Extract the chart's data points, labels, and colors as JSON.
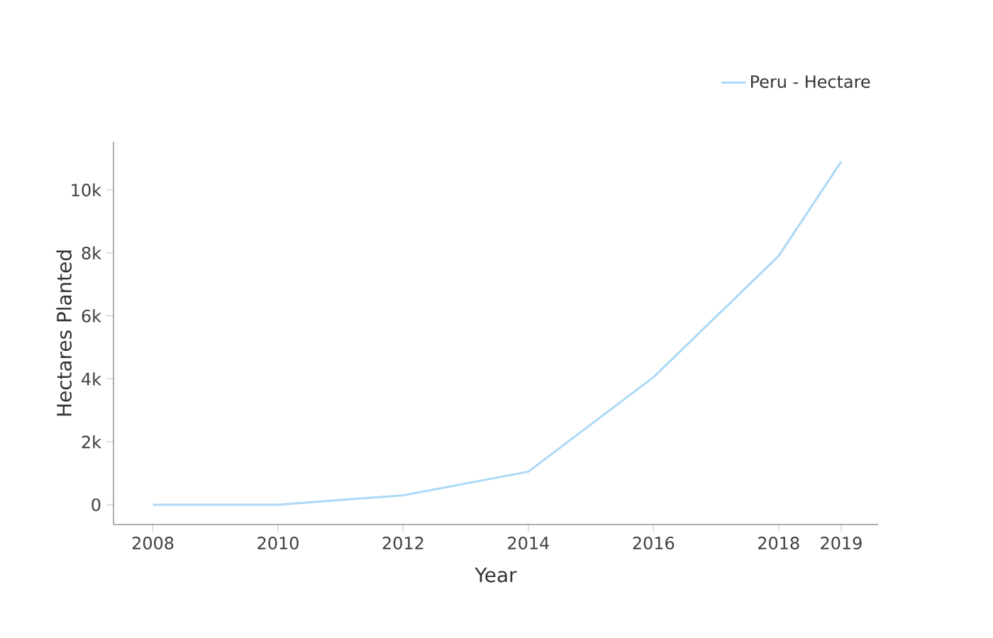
{
  "chart_data": {
    "type": "line",
    "xlabel": "Year",
    "ylabel": "Hectares Planted",
    "x": [
      2008,
      2010,
      2012,
      2014,
      2016,
      2018,
      2019
    ],
    "series": [
      {
        "name": "Peru - Hectare",
        "color": "#abd9f7",
        "values": [
          0,
          0,
          300,
          1050,
          4050,
          7900,
          10900
        ]
      }
    ],
    "xlim": [
      2007.37,
      2019.59
    ],
    "xticks": [
      2008,
      2010,
      2012,
      2014,
      2016,
      2018,
      2019
    ],
    "ylim": [
      -630,
      11530
    ],
    "yticks": [
      0,
      {
        "value": 2000,
        "label": "2k"
      },
      {
        "value": 4000,
        "label": "4k"
      },
      {
        "value": 6000,
        "label": "6k"
      },
      {
        "value": 8000,
        "label": "8k"
      },
      {
        "value": 10000,
        "label": "10k"
      }
    ],
    "grid": false,
    "legend": "top right",
    "marker": "none",
    "line_style": "solid"
  }
}
